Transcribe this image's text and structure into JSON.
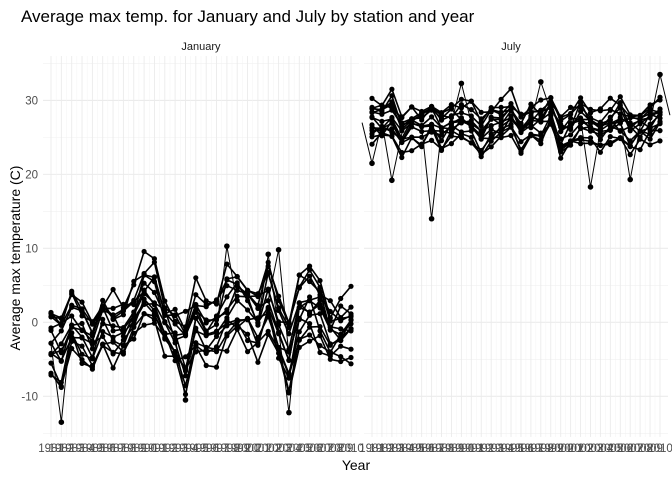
{
  "chart_data": {
    "type": "line",
    "title": "Average max temp. for January and July by station and year",
    "xlabel": "Year",
    "ylabel": "Average max temperature (C)",
    "ylim": [
      -15.5,
      36
    ],
    "y_ticks": [
      -10,
      0,
      10,
      20,
      30
    ],
    "x_range": [
      1981,
      2010
    ],
    "x_tick_labels": [
      "1981",
      "1982",
      "1983",
      "1984",
      "1985",
      "1986",
      "1987",
      "1988",
      "1989",
      "1990",
      "1991",
      "1992",
      "1993",
      "1994",
      "1995",
      "1996",
      "1997",
      "1998",
      "1999",
      "2000",
      "2001",
      "2002",
      "2003",
      "2004",
      "2005",
      "2006",
      "2007",
      "2008",
      "2009",
      "2010"
    ],
    "grid": true,
    "facets": [
      {
        "label": "January",
        "years": [
          1981,
          1982,
          1983,
          1984,
          1985,
          1986,
          1987,
          1988,
          1989,
          1990,
          1991,
          1992,
          1993,
          1994,
          1995,
          1996,
          1997,
          1998,
          1999,
          2000,
          2001,
          2002,
          2003,
          2004,
          2005,
          2006,
          2007,
          2008,
          2009,
          2010
        ],
        "mean_by_year": [
          -3.0,
          -3.5,
          0.5,
          -1.0,
          -2.5,
          0.0,
          -1.0,
          -0.5,
          1.0,
          4.0,
          3.5,
          0.0,
          -2.0,
          -4.0,
          0.5,
          -1.5,
          -1.0,
          1.5,
          2.5,
          1.5,
          0.0,
          3.0,
          -1.0,
          -4.5,
          2.0,
          2.5,
          1.0,
          -2.0,
          -1.0,
          -0.5
        ],
        "spread_by_year": [
          4.5,
          4.5,
          3.5,
          4.0,
          4.0,
          3.5,
          4.0,
          4.0,
          4.0,
          4.0,
          4.0,
          4.0,
          3.5,
          4.5,
          4.0,
          3.5,
          4.0,
          4.5,
          4.5,
          4.5,
          4.0,
          4.5,
          4.0,
          4.5,
          4.5,
          4.5,
          4.5,
          4.5,
          4.0,
          4.0
        ],
        "notable_points": [
          {
            "year": 1982,
            "value": -13.5
          },
          {
            "year": 1994,
            "value": -10.5
          },
          {
            "year": 1998,
            "value": 10.3
          },
          {
            "year": 2003,
            "value": 9.8
          },
          {
            "year": 2004,
            "value": -12.2
          },
          {
            "year": 2002,
            "value": 9.2
          }
        ]
      },
      {
        "label": "July",
        "years": [
          1981,
          1982,
          1983,
          1984,
          1985,
          1986,
          1987,
          1988,
          1989,
          1990,
          1991,
          1992,
          1993,
          1994,
          1995,
          1996,
          1997,
          1998,
          1999,
          2000,
          2001,
          2002,
          2003,
          2004,
          2005,
          2006,
          2007,
          2008,
          2009,
          2010
        ],
        "mean_by_year": [
          27.0,
          27.0,
          28.0,
          25.5,
          26.5,
          26.5,
          27.5,
          26.0,
          27.0,
          27.5,
          27.0,
          25.0,
          26.5,
          27.5,
          28.0,
          25.5,
          27.0,
          27.0,
          28.5,
          25.0,
          26.0,
          27.5,
          26.5,
          26.0,
          27.0,
          27.5,
          26.0,
          26.5,
          27.0,
          28.0
        ],
        "spread_by_year": [
          2.5,
          2.5,
          2.5,
          2.5,
          2.5,
          2.5,
          2.5,
          2.5,
          2.5,
          2.5,
          2.5,
          2.5,
          2.5,
          2.5,
          2.5,
          2.5,
          2.5,
          2.5,
          2.5,
          2.5,
          2.5,
          2.5,
          2.5,
          2.5,
          2.5,
          2.5,
          2.5,
          2.5,
          2.5,
          2.5
        ],
        "notable_points": [
          {
            "year": 1987,
            "value": 14.0
          },
          {
            "year": 1981,
            "value": 21.5
          },
          {
            "year": 1983,
            "value": 19.2
          },
          {
            "year": 2003,
            "value": 18.3
          },
          {
            "year": 2007,
            "value": 19.3
          },
          {
            "year": 2010,
            "value": 33.5
          },
          {
            "year": 1990,
            "value": 32.3
          },
          {
            "year": 1998,
            "value": 32.5
          }
        ]
      }
    ],
    "series_count_per_facet": 14
  }
}
